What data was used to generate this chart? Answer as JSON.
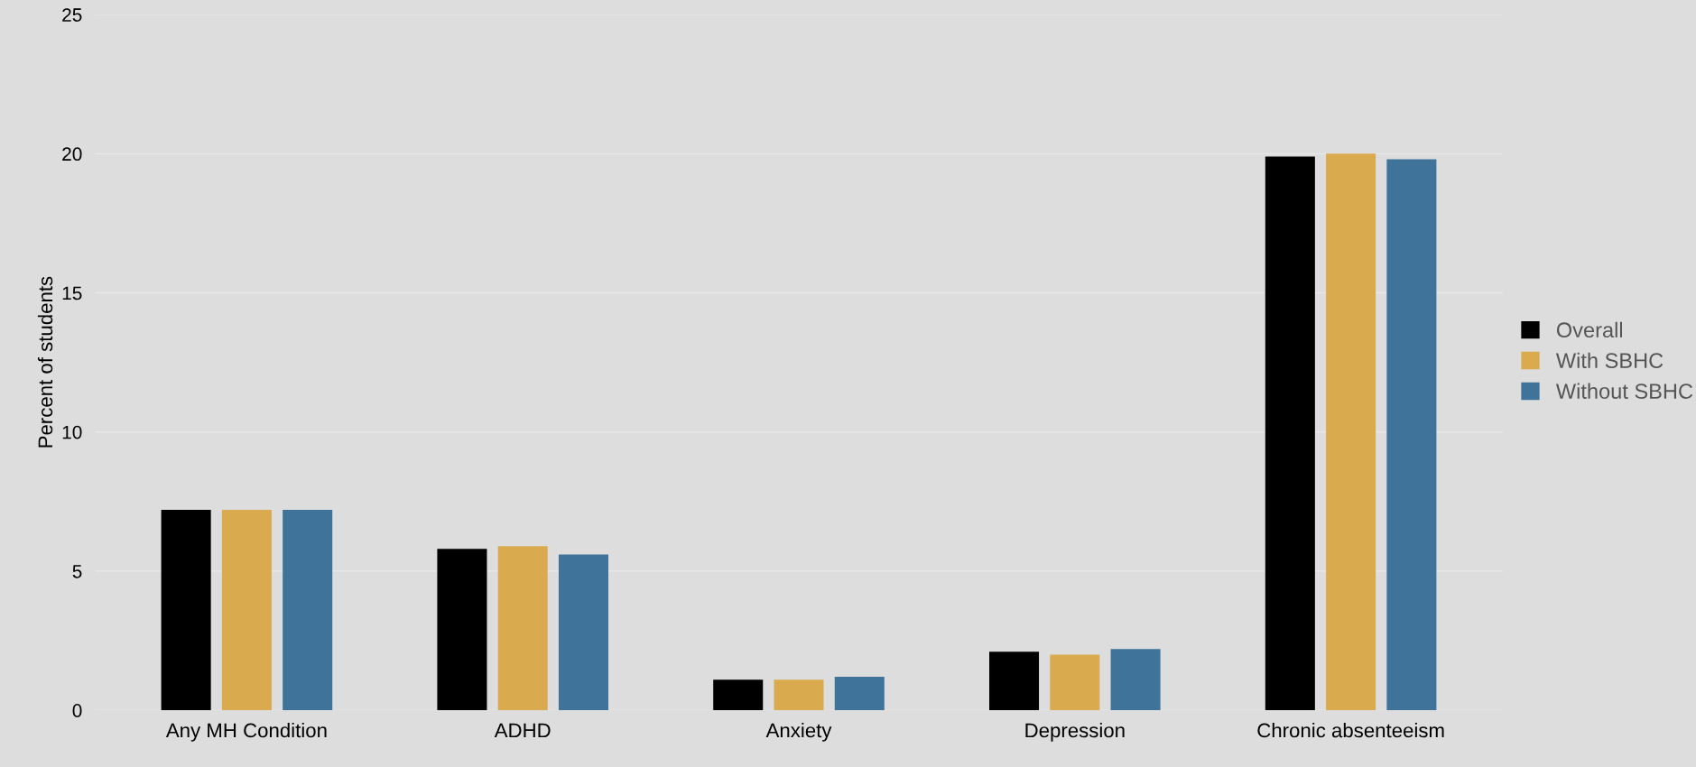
{
  "chart_data": {
    "type": "bar",
    "ylabel": "Percent of students",
    "categories": [
      "Any MH Condition",
      "ADHD",
      "Anxiety",
      "Depression",
      "Chronic absenteeism"
    ],
    "series": [
      {
        "name": "Overall",
        "color": "#000000",
        "values": [
          7.2,
          5.8,
          1.1,
          2.1,
          19.9
        ]
      },
      {
        "name": "With SBHC",
        "color": "#d9ab4e",
        "values": [
          7.2,
          5.9,
          1.1,
          2.0,
          20.0
        ]
      },
      {
        "name": "Without SBHC",
        "color": "#3f739a",
        "values": [
          7.2,
          5.6,
          1.2,
          2.2,
          19.8
        ]
      }
    ],
    "ylim": [
      0,
      25
    ],
    "yticks": [
      0,
      5,
      10,
      15,
      20,
      25
    ],
    "grid": "y",
    "legend": "right"
  }
}
